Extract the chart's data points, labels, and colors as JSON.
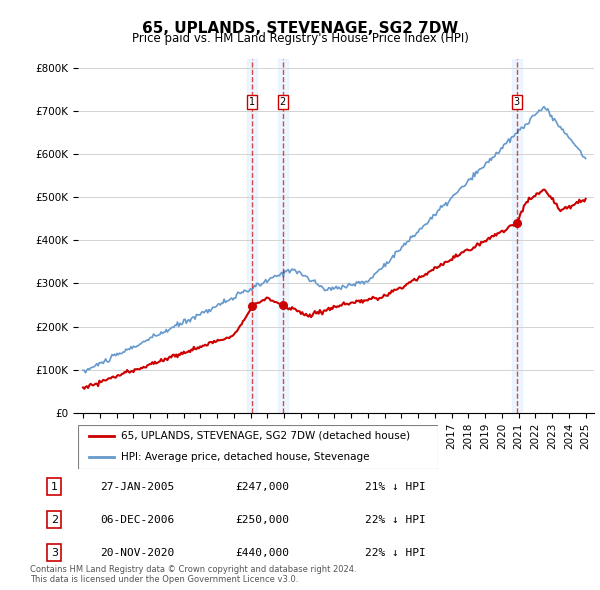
{
  "title": "65, UPLANDS, STEVENAGE, SG2 7DW",
  "subtitle": "Price paid vs. HM Land Registry's House Price Index (HPI)",
  "ylabel_ticks": [
    "£0",
    "£100K",
    "£200K",
    "£300K",
    "£400K",
    "£500K",
    "£600K",
    "£700K",
    "£800K"
  ],
  "ytick_vals": [
    0,
    100000,
    200000,
    300000,
    400000,
    500000,
    600000,
    700000,
    800000
  ],
  "ylim": [
    0,
    820000
  ],
  "xlim_start": 1995.0,
  "xlim_end": 2025.5,
  "legend_line1": "65, UPLANDS, STEVENAGE, SG2 7DW (detached house)",
  "legend_line2": "HPI: Average price, detached house, Stevenage",
  "transactions": [
    {
      "num": 1,
      "date": "27-JAN-2005",
      "price": 247000,
      "hpi_diff": "21% ↓ HPI",
      "x": 2005.07
    },
    {
      "num": 2,
      "date": "06-DEC-2006",
      "price": 250000,
      "hpi_diff": "22% ↓ HPI",
      "x": 2006.92
    },
    {
      "num": 3,
      "date": "20-NOV-2020",
      "price": 440000,
      "hpi_diff": "22% ↓ HPI",
      "x": 2020.88
    }
  ],
  "footnote1": "Contains HM Land Registry data © Crown copyright and database right 2024.",
  "footnote2": "This data is licensed under the Open Government Licence v3.0.",
  "red_color": "#cc0000",
  "blue_color": "#6699cc",
  "vline_color": "#cc0000",
  "vline_alpha": 0.7,
  "bg_shade_color": "#ddeeff",
  "bg_shade_alpha": 0.5
}
